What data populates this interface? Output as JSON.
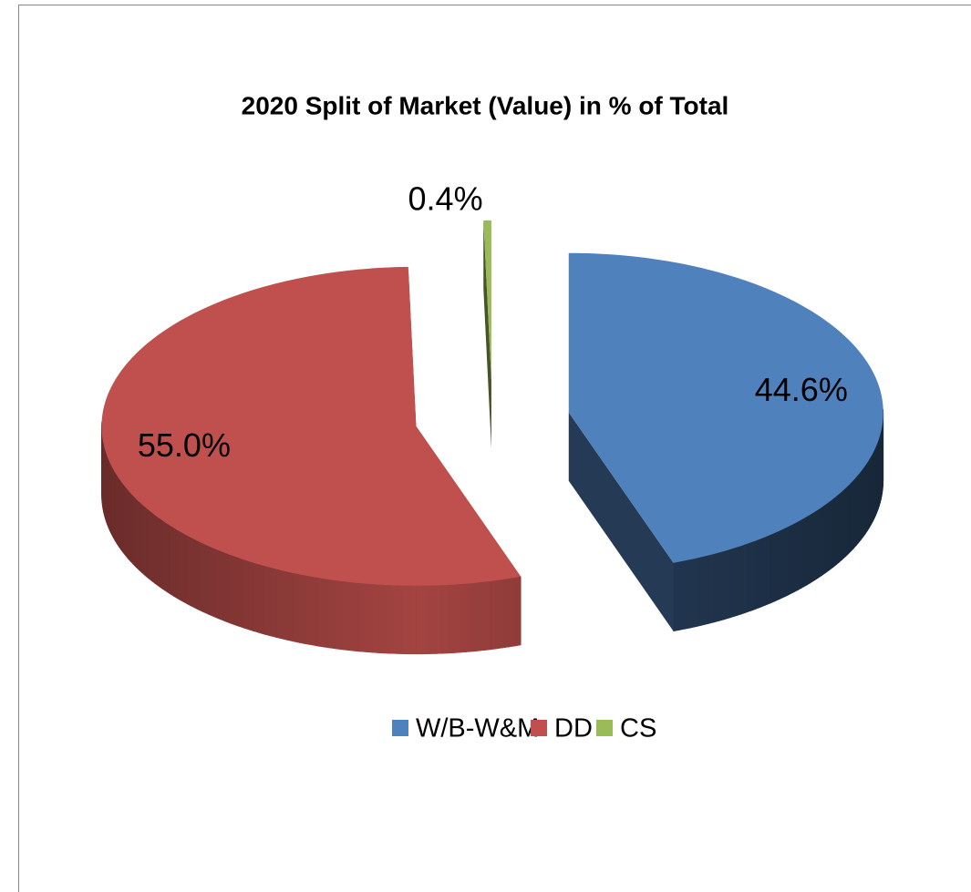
{
  "chart_data": {
    "type": "pie",
    "title": "2020 Split of Market (Value) in % of Total",
    "categories": [
      "W/B-W&M",
      "DD",
      "CS"
    ],
    "values": [
      44.6,
      55.0,
      0.4
    ],
    "value_labels": [
      "44.6%",
      "55.0%",
      "0.4%"
    ],
    "colors": [
      "#4f81bd",
      "#c0504d",
      "#9bbb59"
    ],
    "legend": "bottom"
  }
}
